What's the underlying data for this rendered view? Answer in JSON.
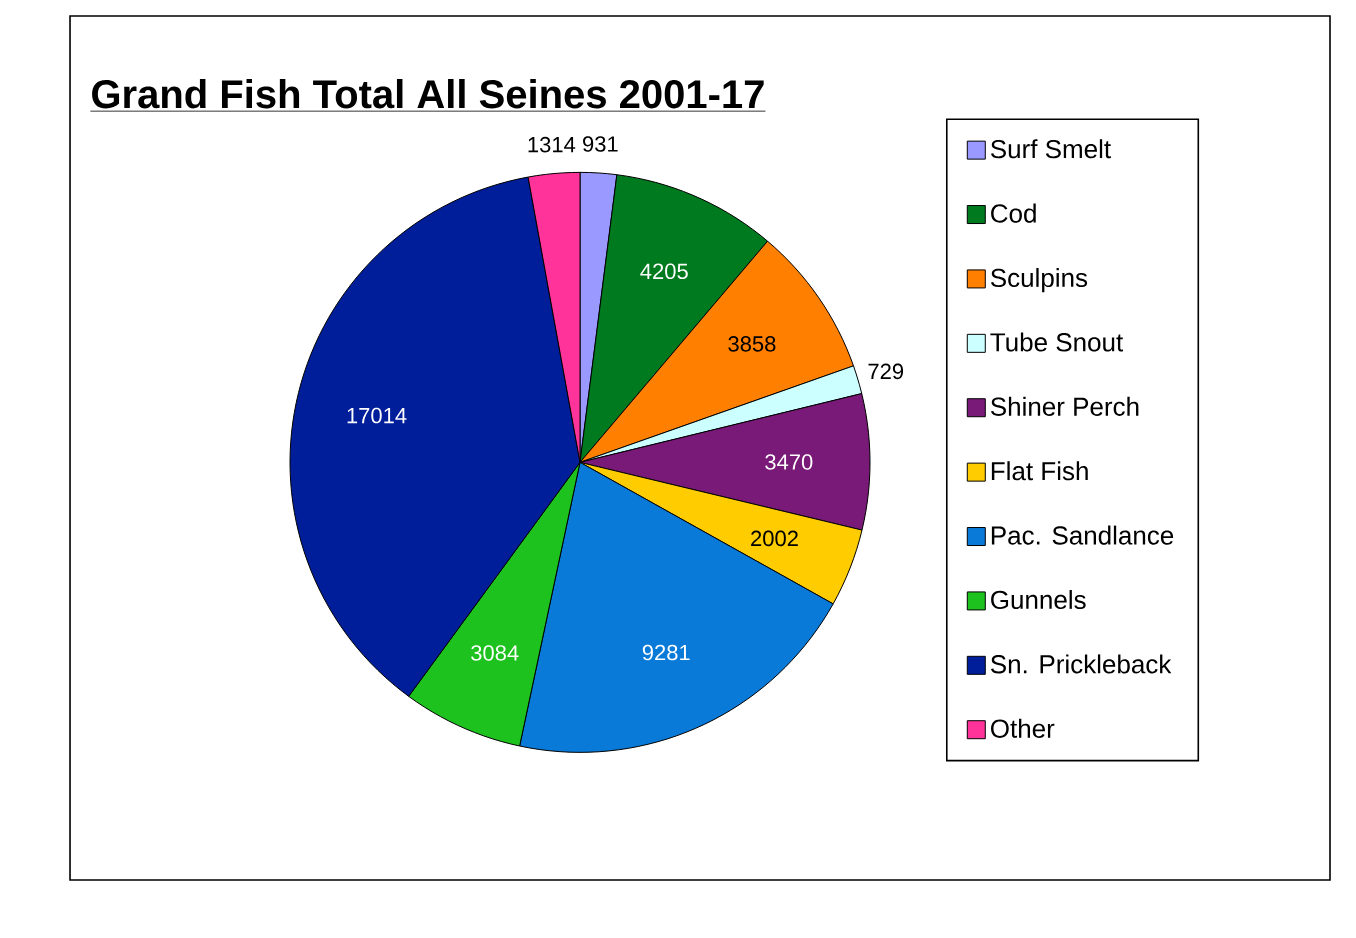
{
  "chart_data": {
    "type": "pie",
    "title": "Grand Fish Total All Seines  2001-17",
    "categories": [
      "Surf Smelt",
      "Cod",
      "Sculpins",
      "Tube Snout",
      "Shiner Perch",
      "Flat Fish",
      "Pac. Sandlance",
      "Gunnels",
      "Sn. Prickleback",
      "Other"
    ],
    "values": [
      931,
      4205,
      3858,
      729,
      3470,
      2002,
      9281,
      3084,
      17014,
      1314
    ],
    "colors": [
      "#9999ff",
      "#007a1e",
      "#ff7f00",
      "#ccffff",
      "#7a1a78",
      "#ffcc00",
      "#0a7ad8",
      "#1ec21e",
      "#001e9a",
      "#ff3399"
    ],
    "data_labels": true,
    "legend": "right"
  }
}
